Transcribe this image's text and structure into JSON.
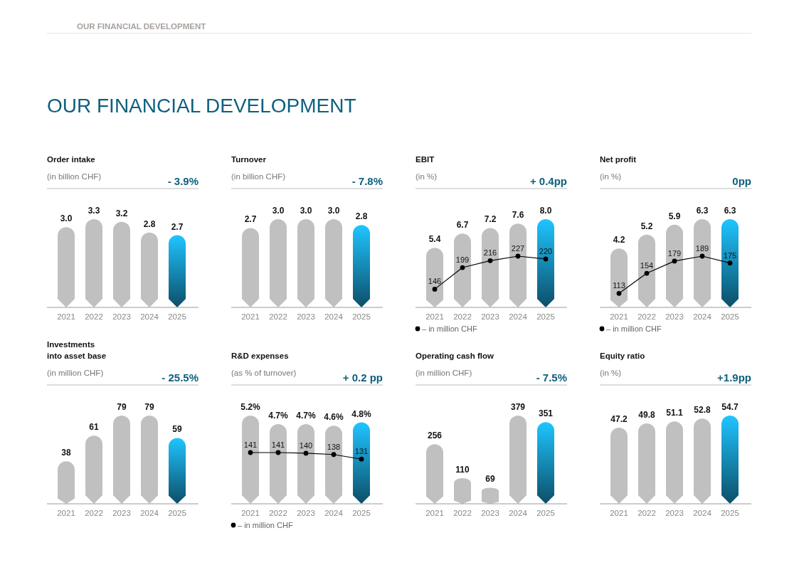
{
  "chart_data": [
    {
      "type": "other",
      "title": "OUR FINANCIAL DEVELOPMENT",
      "annotations": [
        "OUR FINANCIAL DEVELOPMENT"
      ]
    },
    {
      "type": "bar",
      "title": "Order intake",
      "subtitle": "(in billion CHF)",
      "annotations": [
        "- 3.9%"
      ],
      "categories": [
        "2021",
        "2022",
        "2023",
        "2024",
        "2025"
      ],
      "series": [
        {
          "values": [
            3.0,
            3.3,
            3.2,
            2.8,
            2.7
          ],
          "value_labels": [
            "3.0",
            "3.3",
            "3.2",
            "2.8",
            "2.7"
          ],
          "colors": [
            "#c0c0c0",
            "#c0c0c0",
            "#c0c0c0",
            "#c0c0c0",
            "#0e5a78"
          ]
        }
      ]
    },
    {
      "type": "bar",
      "title": "Turnover",
      "subtitle": "(in billion CHF)",
      "annotations": [
        "- 7.8%"
      ],
      "categories": [
        "2021",
        "2022",
        "2023",
        "2024",
        "2025"
      ],
      "series": [
        {
          "values": [
            2.7,
            3.0,
            3.0,
            3.0,
            2.8
          ],
          "value_labels": [
            "2.7",
            "3.0",
            "3.0",
            "3.0",
            "2.8"
          ],
          "colors": [
            "#c0c0c0",
            "#c0c0c0",
            "#c0c0c0",
            "#c0c0c0",
            "#0e5a78"
          ]
        }
      ]
    },
    {
      "type": "bar",
      "title": "EBIT",
      "subtitle": "(in %)",
      "annotations": [
        "+ 0.4pp"
      ],
      "categories": [
        "2021",
        "2022",
        "2023",
        "2024",
        "2025"
      ],
      "data_labels": true,
      "marker": "circle",
      "legend": "bottom",
      "series": [
        {
          "values": [
            5.4,
            6.7,
            7.2,
            7.6,
            8.0
          ],
          "value_labels": [
            "5.4",
            "6.7",
            "7.2",
            "7.6",
            "8.0"
          ],
          "colors": [
            "#c0c0c0",
            "#c0c0c0",
            "#c0c0c0",
            "#c0c0c0",
            "#0e5a78"
          ]
        },
        {
          "type": "line",
          "axis": "y2",
          "name": "– in million CHF",
          "color": "#000000",
          "values": [
            146,
            199,
            216,
            227,
            220
          ]
        }
      ]
    },
    {
      "type": "bar",
      "title": "Net profit",
      "subtitle": "(in %)",
      "annotations": [
        "0pp"
      ],
      "categories": [
        "2021",
        "2022",
        "2023",
        "2024",
        "2025"
      ],
      "data_labels": true,
      "marker": "circle",
      "legend": "bottom",
      "series": [
        {
          "values": [
            4.2,
            5.2,
            5.9,
            6.3,
            6.3
          ],
          "value_labels": [
            "4.2",
            "5.2",
            "5.9",
            "6.3",
            "6.3"
          ],
          "colors": [
            "#c0c0c0",
            "#c0c0c0",
            "#c0c0c0",
            "#c0c0c0",
            "#0e5a78"
          ]
        },
        {
          "type": "line",
          "axis": "y2",
          "name": "– in million CHF",
          "color": "#000000",
          "values": [
            113,
            154,
            179,
            189,
            175
          ]
        }
      ]
    },
    {
      "type": "bar",
      "title": "Investments\ninto asset base",
      "subtitle": "(in million CHF)",
      "annotations": [
        "- 25.5%"
      ],
      "categories": [
        "2021",
        "2022",
        "2023",
        "2024",
        "2025"
      ],
      "series": [
        {
          "values": [
            38,
            61,
            79,
            79,
            59
          ],
          "value_labels": [
            "38",
            "61",
            "79",
            "79",
            "59"
          ],
          "colors": [
            "#c0c0c0",
            "#c0c0c0",
            "#c0c0c0",
            "#c0c0c0",
            "#0e5a78"
          ]
        }
      ]
    },
    {
      "type": "bar",
      "title": "R&D expenses",
      "subtitle": "(as % of turnover)",
      "annotations": [
        "+ 0.2 pp"
      ],
      "categories": [
        "2021",
        "2022",
        "2023",
        "2024",
        "2025"
      ],
      "data_labels": true,
      "marker": "circle",
      "legend": "bottom",
      "series": [
        {
          "values": [
            5.2,
            4.7,
            4.7,
            4.6,
            4.8
          ],
          "value_labels": [
            "5.2%",
            "4.7%",
            "4.7%",
            "4.6%",
            "4.8%"
          ],
          "colors": [
            "#c0c0c0",
            "#c0c0c0",
            "#c0c0c0",
            "#c0c0c0",
            "#0e5a78"
          ]
        },
        {
          "type": "line",
          "axis": "y2",
          "name": "– in million CHF",
          "color": "#000000",
          "values": [
            141,
            141,
            140,
            138,
            131
          ]
        }
      ]
    },
    {
      "type": "bar",
      "title": "Operating cash flow",
      "subtitle": "(in million CHF)",
      "annotations": [
        "- 7.5%"
      ],
      "categories": [
        "2021",
        "2022",
        "2023",
        "2024",
        "2025"
      ],
      "series": [
        {
          "values": [
            256,
            110,
            69,
            379,
            351
          ],
          "value_labels": [
            "256",
            "110",
            "69",
            "379",
            "351"
          ],
          "colors": [
            "#c0c0c0",
            "#c0c0c0",
            "#c0c0c0",
            "#c0c0c0",
            "#0e5a78"
          ]
        }
      ]
    },
    {
      "type": "bar",
      "title": "Equity ratio",
      "subtitle": "(in %)",
      "annotations": [
        "+1.9pp"
      ],
      "categories": [
        "2021",
        "2022",
        "2023",
        "2024",
        "2025"
      ],
      "series": [
        {
          "values": [
            47.2,
            49.8,
            51.1,
            52.8,
            54.7
          ],
          "value_labels": [
            "47.2",
            "49.8",
            "51.1",
            "52.8",
            "54.7"
          ],
          "colors": [
            "#c0c0c0",
            "#c0c0c0",
            "#c0c0c0",
            "#c0c0c0",
            "#0e5a78"
          ]
        }
      ]
    }
  ]
}
